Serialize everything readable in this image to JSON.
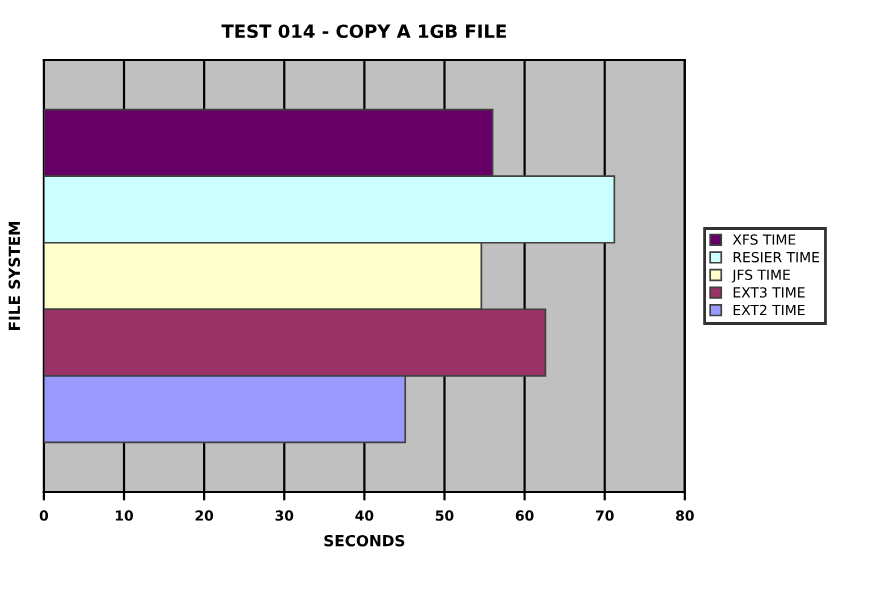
{
  "chart_data": {
    "type": "bar",
    "orientation": "horizontal",
    "title": "TEST 014 - COPY A 1GB FILE",
    "xlabel": "SECONDS",
    "ylabel": "FILE SYSTEM",
    "categories": [
      null
    ],
    "series": [
      {
        "name": "XFS TIME",
        "color": "#660066",
        "values": [
          56
        ]
      },
      {
        "name": "RESIER TIME",
        "color": "#ccffff",
        "values": [
          71.2
        ]
      },
      {
        "name": "JFS TIME",
        "color": "#ffffcc",
        "values": [
          54.6
        ]
      },
      {
        "name": "EXT3 TIME",
        "color": "#993366",
        "values": [
          62.6
        ]
      },
      {
        "name": "EXT2 TIME",
        "color": "#9999ff",
        "values": [
          45.1
        ]
      }
    ],
    "xlim": [
      0,
      80
    ],
    "xticks": [
      0,
      10,
      20,
      30,
      40,
      50,
      60,
      70,
      80
    ],
    "grid": "x",
    "legend": "right"
  }
}
